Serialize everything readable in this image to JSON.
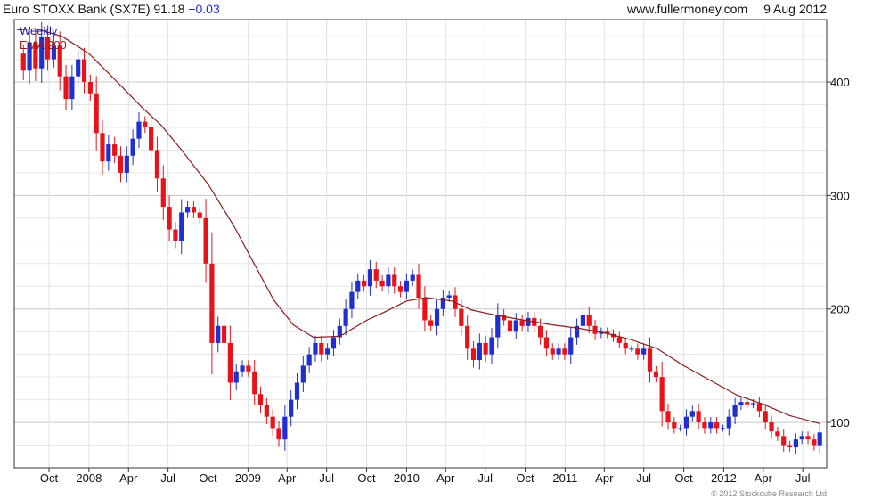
{
  "header": {
    "instrument": "Euro STOXX Bank (SX7E)",
    "last": "91.18",
    "change": "+0.03",
    "site": "www.fullermoney.com",
    "date": "9 Aug 2012"
  },
  "legend": {
    "interval": "Weekly",
    "overlay": "EMA 200"
  },
  "credit": "© 2012 Stockcube Research Ltd",
  "colors": {
    "up": "#1f2fd0",
    "down": "#e8121b",
    "ema": "#8b1c1c",
    "grid": "#dcdcdc",
    "frame": "#333333"
  },
  "chart_data": {
    "type": "line",
    "title": "Euro STOXX Bank (SX7E) 91.18 +0.03",
    "interval": "weekly candlesticks",
    "ylim": [
      60,
      455
    ],
    "yticks": [
      100,
      200,
      300,
      400
    ],
    "x_ticks": [
      {
        "label": "Oct",
        "date": "2007-10-01"
      },
      {
        "label": "2008",
        "date": "2008-01-01"
      },
      {
        "label": "Apr",
        "date": "2008-04-01"
      },
      {
        "label": "Jul",
        "date": "2008-07-01"
      },
      {
        "label": "Oct",
        "date": "2008-10-01"
      },
      {
        "label": "2009",
        "date": "2009-01-01"
      },
      {
        "label": "Apr",
        "date": "2009-04-01"
      },
      {
        "label": "Jul",
        "date": "2009-07-01"
      },
      {
        "label": "Oct",
        "date": "2009-10-01"
      },
      {
        "label": "2010",
        "date": "2010-01-01"
      },
      {
        "label": "Apr",
        "date": "2010-04-01"
      },
      {
        "label": "Jul",
        "date": "2010-07-01"
      },
      {
        "label": "Oct",
        "date": "2010-10-01"
      },
      {
        "label": "2011",
        "date": "2011-01-01"
      },
      {
        "label": "Apr",
        "date": "2011-04-01"
      },
      {
        "label": "Jul",
        "date": "2011-07-01"
      },
      {
        "label": "Oct",
        "date": "2011-10-01"
      },
      {
        "label": "2012",
        "date": "2012-01-01"
      },
      {
        "label": "Apr",
        "date": "2012-04-01"
      },
      {
        "label": "Jul",
        "date": "2012-07-01"
      }
    ],
    "series": [
      {
        "name": "Weekly",
        "style": "candlestick",
        "points": [
          [
            "2007-07-20",
            425
          ],
          [
            "2007-08-03",
            410
          ],
          [
            "2007-08-17",
            435
          ],
          [
            "2007-08-31",
            412
          ],
          [
            "2007-09-14",
            440
          ],
          [
            "2007-09-28",
            420
          ],
          [
            "2007-10-12",
            432
          ],
          [
            "2007-10-26",
            405
          ],
          [
            "2007-11-09",
            385
          ],
          [
            "2007-11-23",
            405
          ],
          [
            "2007-12-07",
            420
          ],
          [
            "2007-12-21",
            400
          ],
          [
            "2008-01-04",
            390
          ],
          [
            "2008-01-18",
            355
          ],
          [
            "2008-02-01",
            330
          ],
          [
            "2008-02-15",
            345
          ],
          [
            "2008-02-29",
            335
          ],
          [
            "2008-03-14",
            320
          ],
          [
            "2008-03-28",
            335
          ],
          [
            "2008-04-11",
            350
          ],
          [
            "2008-04-25",
            365
          ],
          [
            "2008-05-09",
            360
          ],
          [
            "2008-05-23",
            340
          ],
          [
            "2008-06-06",
            315
          ],
          [
            "2008-06-20",
            290
          ],
          [
            "2008-07-04",
            270
          ],
          [
            "2008-07-18",
            260
          ],
          [
            "2008-08-01",
            285
          ],
          [
            "2008-08-15",
            290
          ],
          [
            "2008-08-29",
            285
          ],
          [
            "2008-09-12",
            280
          ],
          [
            "2008-09-26",
            240
          ],
          [
            "2008-10-10",
            170
          ],
          [
            "2008-10-24",
            185
          ],
          [
            "2008-11-07",
            170
          ],
          [
            "2008-11-21",
            135
          ],
          [
            "2008-12-05",
            145
          ],
          [
            "2008-12-19",
            150
          ],
          [
            "2009-01-02",
            145
          ],
          [
            "2009-01-16",
            125
          ],
          [
            "2009-01-30",
            115
          ],
          [
            "2009-02-13",
            105
          ],
          [
            "2009-02-27",
            95
          ],
          [
            "2009-03-13",
            85
          ],
          [
            "2009-03-27",
            105
          ],
          [
            "2009-04-10",
            120
          ],
          [
            "2009-04-24",
            135
          ],
          [
            "2009-05-08",
            150
          ],
          [
            "2009-05-22",
            160
          ],
          [
            "2009-06-05",
            170
          ],
          [
            "2009-06-19",
            160
          ],
          [
            "2009-07-03",
            165
          ],
          [
            "2009-07-17",
            175
          ],
          [
            "2009-07-31",
            185
          ],
          [
            "2009-08-14",
            200
          ],
          [
            "2009-08-28",
            215
          ],
          [
            "2009-09-11",
            225
          ],
          [
            "2009-09-25",
            220
          ],
          [
            "2009-10-09",
            235
          ],
          [
            "2009-10-23",
            225
          ],
          [
            "2009-11-06",
            220
          ],
          [
            "2009-11-20",
            230
          ],
          [
            "2009-12-04",
            220
          ],
          [
            "2009-12-18",
            215
          ],
          [
            "2010-01-01",
            225
          ],
          [
            "2010-01-15",
            230
          ],
          [
            "2010-01-29",
            210
          ],
          [
            "2010-02-12",
            190
          ],
          [
            "2010-02-26",
            185
          ],
          [
            "2010-03-12",
            200
          ],
          [
            "2010-03-26",
            210
          ],
          [
            "2010-04-09",
            212
          ],
          [
            "2010-04-23",
            200
          ],
          [
            "2010-05-07",
            185
          ],
          [
            "2010-05-21",
            165
          ],
          [
            "2010-06-04",
            155
          ],
          [
            "2010-06-18",
            170
          ],
          [
            "2010-07-02",
            160
          ],
          [
            "2010-07-16",
            175
          ],
          [
            "2010-07-30",
            195
          ],
          [
            "2010-08-13",
            190
          ],
          [
            "2010-08-27",
            180
          ],
          [
            "2010-09-10",
            190
          ],
          [
            "2010-09-24",
            185
          ],
          [
            "2010-10-08",
            192
          ],
          [
            "2010-10-22",
            185
          ],
          [
            "2010-11-05",
            175
          ],
          [
            "2010-11-19",
            165
          ],
          [
            "2010-12-03",
            160
          ],
          [
            "2010-12-17",
            165
          ],
          [
            "2010-12-31",
            160
          ],
          [
            "2011-01-14",
            175
          ],
          [
            "2011-01-28",
            185
          ],
          [
            "2011-02-11",
            195
          ],
          [
            "2011-02-25",
            185
          ],
          [
            "2011-03-11",
            178
          ],
          [
            "2011-03-25",
            180
          ],
          [
            "2011-04-08",
            178
          ],
          [
            "2011-04-22",
            175
          ],
          [
            "2011-05-06",
            170
          ],
          [
            "2011-05-20",
            165
          ],
          [
            "2011-06-03",
            165
          ],
          [
            "2011-06-17",
            160
          ],
          [
            "2011-07-01",
            165
          ],
          [
            "2011-07-15",
            145
          ],
          [
            "2011-07-29",
            140
          ],
          [
            "2011-08-12",
            110
          ],
          [
            "2011-08-26",
            100
          ],
          [
            "2011-09-09",
            95
          ],
          [
            "2011-09-23",
            95
          ],
          [
            "2011-10-07",
            105
          ],
          [
            "2011-10-21",
            110
          ],
          [
            "2011-11-04",
            100
          ],
          [
            "2011-11-18",
            95
          ],
          [
            "2011-12-02",
            100
          ],
          [
            "2011-12-16",
            95
          ],
          [
            "2011-12-30",
            95
          ],
          [
            "2012-01-13",
            105
          ],
          [
            "2012-01-27",
            115
          ],
          [
            "2012-02-10",
            118
          ],
          [
            "2012-02-24",
            116
          ],
          [
            "2012-03-09",
            117
          ],
          [
            "2012-03-23",
            110
          ],
          [
            "2012-04-06",
            100
          ],
          [
            "2012-04-20",
            92
          ],
          [
            "2012-05-04",
            88
          ],
          [
            "2012-05-18",
            80
          ],
          [
            "2012-06-01",
            78
          ],
          [
            "2012-06-15",
            85
          ],
          [
            "2012-06-29",
            88
          ],
          [
            "2012-07-13",
            85
          ],
          [
            "2012-07-27",
            80
          ],
          [
            "2012-08-09",
            91.18
          ]
        ]
      },
      {
        "name": "EMA 200",
        "style": "line",
        "points": [
          [
            "2007-07-20",
            446
          ],
          [
            "2007-09-01",
            447
          ],
          [
            "2007-11-01",
            440
          ],
          [
            "2008-01-01",
            425
          ],
          [
            "2008-03-01",
            402
          ],
          [
            "2008-05-01",
            378
          ],
          [
            "2008-06-15",
            362
          ],
          [
            "2008-08-01",
            340
          ],
          [
            "2008-10-01",
            310
          ],
          [
            "2008-12-01",
            272
          ],
          [
            "2009-01-15",
            240
          ],
          [
            "2009-03-01",
            208
          ],
          [
            "2009-04-15",
            186
          ],
          [
            "2009-06-01",
            175
          ],
          [
            "2009-08-01",
            176
          ],
          [
            "2009-10-01",
            190
          ],
          [
            "2009-11-15",
            198
          ],
          [
            "2010-01-01",
            207
          ],
          [
            "2010-02-15",
            210
          ],
          [
            "2010-04-15",
            207
          ],
          [
            "2010-06-01",
            199
          ],
          [
            "2010-08-01",
            194
          ],
          [
            "2010-10-01",
            190
          ],
          [
            "2010-12-01",
            186
          ],
          [
            "2011-02-01",
            183
          ],
          [
            "2011-04-01",
            179
          ],
          [
            "2011-06-01",
            173
          ],
          [
            "2011-08-01",
            165
          ],
          [
            "2011-10-01",
            150
          ],
          [
            "2011-12-01",
            137
          ],
          [
            "2012-02-01",
            124
          ],
          [
            "2012-04-01",
            116
          ],
          [
            "2012-06-01",
            106
          ],
          [
            "2012-08-09",
            99
          ]
        ]
      }
    ]
  }
}
